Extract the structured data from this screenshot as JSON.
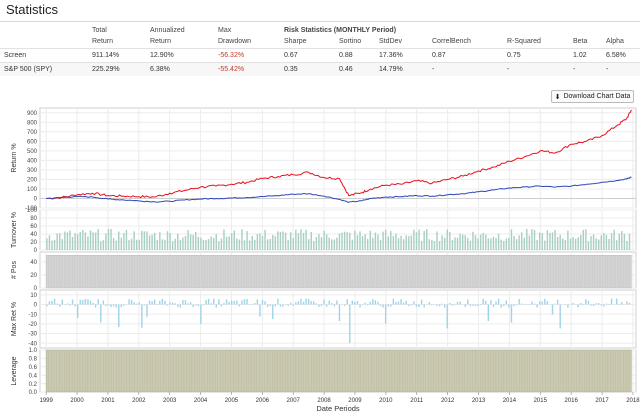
{
  "page": {
    "title": "Statistics"
  },
  "stats_table": {
    "header_top": [
      "",
      "Total",
      "Annualized",
      "Max",
      "Risk Statistics (MONTHLY Period)",
      "",
      "",
      "",
      "",
      "",
      ""
    ],
    "header_bottom": [
      "",
      "Return",
      "Return",
      "Drawdown",
      "Sharpe",
      "Sortino",
      "StdDev",
      "CorrelBench",
      "R-Squared",
      "Beta",
      "Alpha"
    ],
    "rows": [
      {
        "name": "Screen",
        "cells": [
          "911.14%",
          "12.90%",
          "-56.32%",
          "0.67",
          "0.88",
          "17.36%",
          "0.87",
          "0.75",
          "1.02",
          "6.58%"
        ]
      },
      {
        "name": "S&P 500 (SPY)",
        "cells": [
          "225.29%",
          "6.38%",
          "-55.42%",
          "0.35",
          "0.46",
          "14.79%",
          "-",
          "-",
          "-",
          "-"
        ]
      }
    ]
  },
  "toolbar": {
    "download_label": "Download Chart Data",
    "download_icon": "download-icon"
  },
  "colors": {
    "screen": "#e8101e",
    "spy": "#2a47b8",
    "turnover": "#a8cfbf",
    "pos": "#d3d3d3",
    "maxret": "#9fd4e8",
    "leverage": "#cac9b0"
  },
  "chart_data": [
    {
      "type": "line",
      "ylabel": "Return %",
      "ylim": [
        -100,
        950
      ],
      "yticks": [
        "900",
        "800",
        "700",
        "600",
        "500",
        "400",
        "300",
        "200",
        "100",
        "0",
        "-100"
      ],
      "x": [
        1999.0,
        1999.5,
        2000.0,
        2000.5,
        2001.0,
        2001.5,
        2002.0,
        2002.5,
        2003.0,
        2003.5,
        2004.0,
        2004.5,
        2005.0,
        2005.5,
        2006.0,
        2006.5,
        2007.0,
        2007.5,
        2008.0,
        2008.5,
        2008.8,
        2009.2,
        2009.5,
        2010.0,
        2010.5,
        2011.0,
        2011.5,
        2012.0,
        2012.5,
        2013.0,
        2013.5,
        2014.0,
        2014.5,
        2015.0,
        2015.5,
        2016.0,
        2016.5,
        2017.0,
        2017.5,
        2017.8,
        2017.95
      ],
      "series": [
        {
          "name": "Screen",
          "values": [
            0,
            10,
            40,
            55,
            30,
            25,
            20,
            15,
            55,
            85,
            120,
            130,
            150,
            170,
            210,
            230,
            250,
            275,
            220,
            210,
            30,
            60,
            100,
            140,
            150,
            185,
            160,
            200,
            235,
            290,
            330,
            390,
            440,
            500,
            480,
            570,
            600,
            660,
            770,
            840,
            930
          ]
        },
        {
          "name": "S&P 500 (SPY)",
          "values": [
            0,
            10,
            20,
            15,
            -5,
            -15,
            -25,
            -35,
            -30,
            -15,
            -5,
            0,
            5,
            10,
            20,
            30,
            45,
            50,
            25,
            -10,
            -40,
            -25,
            0,
            15,
            20,
            30,
            25,
            40,
            50,
            70,
            90,
            110,
            120,
            130,
            120,
            130,
            150,
            170,
            190,
            205,
            225
          ]
        }
      ]
    },
    {
      "type": "bar",
      "ylabel": "Turnover %",
      "ylim": [
        0,
        100
      ],
      "yticks": [
        "100",
        "80",
        "60",
        "40",
        "20",
        "0"
      ],
      "x_range": [
        1999.0,
        2017.95
      ],
      "bar_count": 228,
      "typical_level": 48
    },
    {
      "type": "bar",
      "ylabel": "# Pos",
      "ylim": [
        0,
        55
      ],
      "yticks": [
        "40",
        "20",
        "0"
      ],
      "x_range": [
        1999.0,
        2017.95
      ],
      "level": 50
    },
    {
      "type": "bar",
      "ylabel": "Max Ret %",
      "ylim": [
        -45,
        15
      ],
      "yticks": [
        "10",
        "0",
        "-10",
        "-20",
        "-30",
        "-40"
      ],
      "x_range": [
        1999.0,
        2017.95
      ],
      "bar_count": 228,
      "typical_level": 6
    },
    {
      "type": "bar",
      "ylabel": "Leverage",
      "ylim": [
        0,
        1.0
      ],
      "yticks": [
        "1.0",
        "0.8",
        "0.6",
        "0.4",
        "0.2",
        "0.0"
      ],
      "x_range": [
        1999.0,
        2017.95
      ],
      "level": 1.0
    }
  ],
  "x_axis": {
    "label": "Date Periods",
    "ticks": [
      "1999",
      "2000",
      "2001",
      "2002",
      "2003",
      "2004",
      "2005",
      "2006",
      "2007",
      "2008",
      "2009",
      "2010",
      "2011",
      "2012",
      "2013",
      "2014",
      "2015",
      "2016",
      "2017",
      "2018"
    ]
  }
}
